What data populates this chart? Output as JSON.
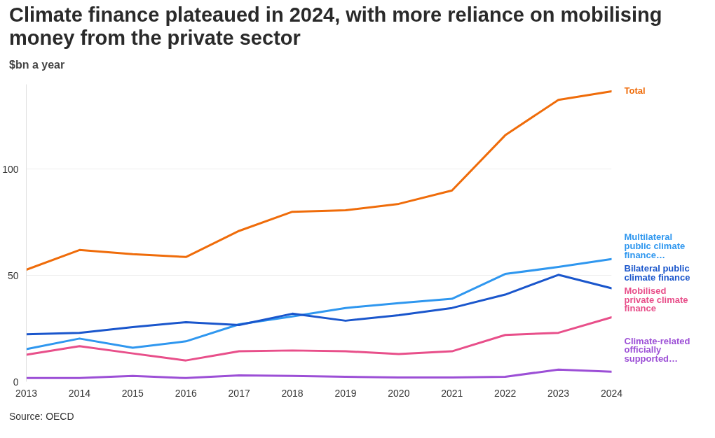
{
  "chart_data": {
    "type": "line",
    "title": "Climate finance plateaued in 2024, with more reliance on mobilising money from the private sector",
    "ylabel": "$bn a year",
    "x": [
      2013,
      2014,
      2015,
      2016,
      2017,
      2018,
      2019,
      2020,
      2021,
      2022,
      2023,
      2024
    ],
    "xlim": [
      2013,
      2024
    ],
    "xticks": [
      2013,
      2014,
      2015,
      2016,
      2017,
      2018,
      2019,
      2020,
      2021,
      2022,
      2023,
      2024
    ],
    "ylim": [
      0,
      140
    ],
    "yticks": [
      0,
      50,
      100
    ],
    "grid": "y",
    "legend": false,
    "marker": "none",
    "line_style": "solid",
    "series": [
      {
        "name": "Total",
        "color": "#ef6c0a",
        "values": [
          52.7,
          62,
          60,
          58.7,
          71,
          80,
          80.7,
          83.7,
          90,
          116,
          132.7,
          136.7
        ]
      },
      {
        "name": "Multilateral public climate finance…",
        "color": "#2f97ef",
        "values": [
          15.3,
          20.3,
          16,
          19,
          27,
          30.7,
          34.7,
          37,
          39,
          50.7,
          54,
          57.7
        ]
      },
      {
        "name": "Bilateral public climate finance",
        "color": "#1a56cc",
        "values": [
          22.3,
          23,
          25.7,
          28,
          26.7,
          32,
          28.7,
          31.3,
          34.7,
          41,
          50.3,
          44
        ]
      },
      {
        "name": "Mobilised private climate finance",
        "color": "#e84f8a",
        "values": [
          12.7,
          16.7,
          13.3,
          10,
          14.3,
          14.7,
          14.3,
          13,
          14.3,
          22,
          23,
          30.3
        ]
      },
      {
        "name": "Climate-related officially supported…",
        "color": "#9c4fd6",
        "values": [
          1.7,
          1.7,
          2.7,
          1.7,
          3,
          2.7,
          2.3,
          2,
          2,
          2.3,
          5.7,
          4.7
        ]
      }
    ],
    "annotations": [
      "Source: OECD"
    ]
  }
}
